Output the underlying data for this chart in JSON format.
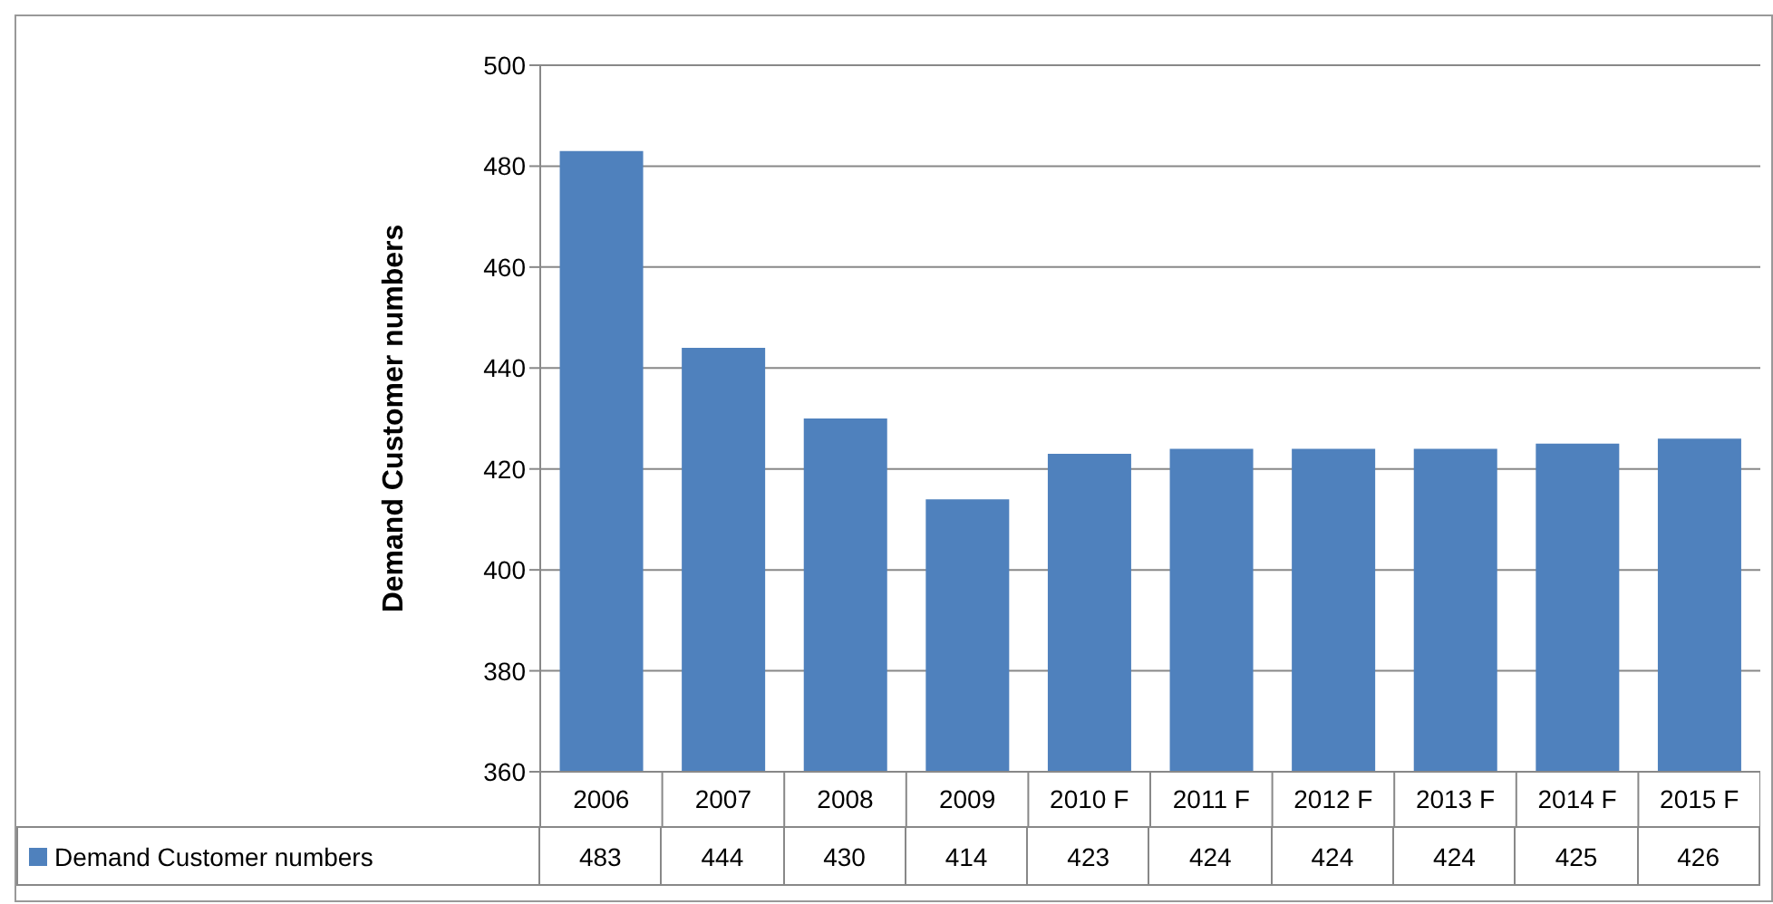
{
  "chart_data": {
    "type": "bar",
    "ylabel": "Demand Customer numbers",
    "categories": [
      "2006",
      "2007",
      "2008",
      "2009",
      "2010 F",
      "2011 F",
      "2012 F",
      "2013 F",
      "2014 F",
      "2015 F"
    ],
    "series": [
      {
        "name": "Demand Customer numbers",
        "color": "#4f81bd",
        "values": [
          483,
          444,
          430,
          414,
          423,
          424,
          424,
          424,
          425,
          426
        ]
      }
    ],
    "ylim": [
      360,
      500
    ],
    "yticks": [
      360,
      380,
      400,
      420,
      440,
      460,
      480,
      500
    ],
    "grid": "y",
    "legend": "bottom",
    "data_labels": true
  }
}
